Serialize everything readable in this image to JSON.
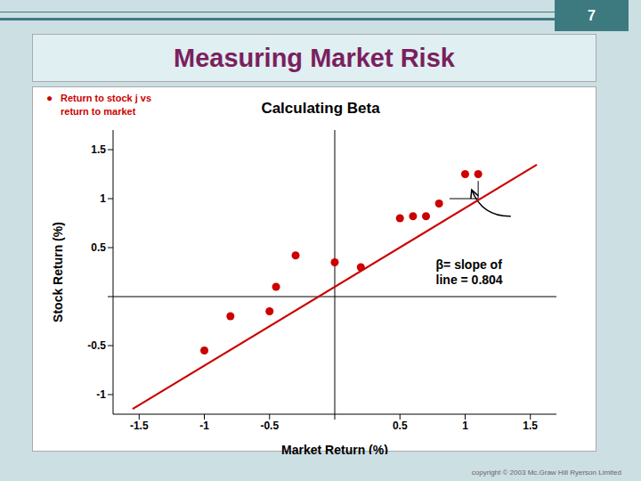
{
  "slide": {
    "title": "Measuring Market Risk",
    "number": "7",
    "bullet": "●",
    "bullet_label": "Return to stock j vs\nreturn to market",
    "copyright": "copyright © 2003 Mc.Graw Hill Ryerson Limited",
    "colors": {
      "background": "#ccdfe3",
      "title_box": "#e0eff2",
      "title": "#7b1f5e",
      "bullet": "#cc0000",
      "number_box": "#3d7a80",
      "top_lines": "#3d7a80"
    }
  },
  "chart_data": {
    "type": "scatter",
    "title": "Calculating Beta",
    "xlabel": "Market Return (%)",
    "ylabel": "Stock Return (%)",
    "series": [
      {
        "type": "scatter",
        "color": "#cc0000",
        "x": [
          -1.0,
          -0.8,
          -0.5,
          -0.45,
          -0.3,
          0.0,
          0.2,
          0.5,
          0.6,
          0.7,
          0.8,
          1.0,
          1.1
        ],
        "values": [
          -0.55,
          -0.2,
          -0.15,
          0.1,
          0.42,
          0.35,
          0.3,
          0.8,
          0.82,
          0.82,
          0.95,
          1.25,
          1.25
        ]
      },
      {
        "type": "line",
        "color": "#cc0000",
        "x": [
          -1.55,
          1.55
        ],
        "values": [
          -1.1462,
          1.3462
        ]
      }
    ],
    "annotations": [
      {
        "text": "β= slope of\nline = 0.804"
      }
    ],
    "bracket": {
      "color": "#000000",
      "x": [
        0.88,
        1.1,
        1.1
      ],
      "values": [
        1.0,
        1.0,
        1.18
      ]
    },
    "arrow": {
      "color": "#000000",
      "x": [
        1.35,
        1.05
      ],
      "values": [
        0.82,
        1.09
      ]
    },
    "zero_lines": {
      "x": 0,
      "y": 0,
      "color": "#000000"
    },
    "xlim": [
      -1.7,
      1.7
    ],
    "ylim": [
      -1.2,
      1.7
    ],
    "xticks": [
      -1.5,
      -1,
      -0.5,
      {
        "value": 0,
        "label": ""
      },
      0.5,
      1,
      1.5
    ],
    "yticks": [
      -1,
      -0.5,
      {
        "value": 0,
        "label": ""
      },
      0.5,
      1,
      1.5
    ],
    "grid": false
  }
}
